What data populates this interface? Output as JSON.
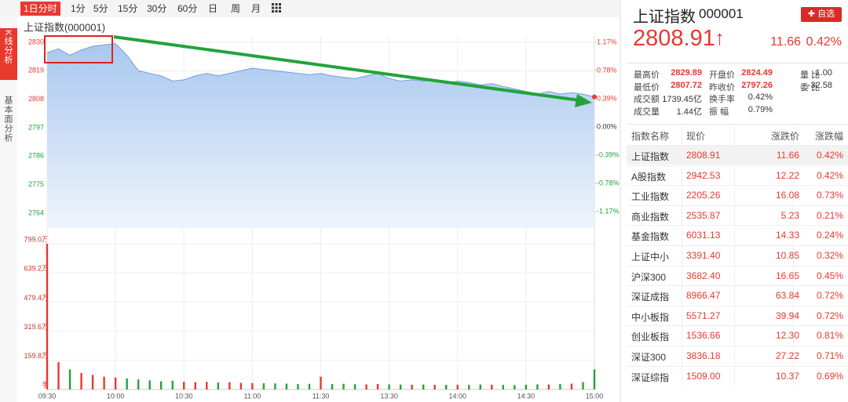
{
  "tabs": [
    "1日分时",
    "1分",
    "5分",
    "15分",
    "30分",
    "60分",
    "日",
    "周",
    "月"
  ],
  "side_tabs": [
    "K线分析",
    "基本面分析"
  ],
  "chart_data": {
    "type": "line",
    "title": "上证指数(000001)",
    "x": [
      "09:30",
      "09:35",
      "09:40",
      "09:45",
      "09:50",
      "09:55",
      "10:00",
      "10:05",
      "10:10",
      "10:15",
      "10:20",
      "10:25",
      "10:30",
      "10:35",
      "10:40",
      "10:45",
      "10:50",
      "10:55",
      "11:00",
      "11:05",
      "11:10",
      "11:15",
      "11:20",
      "11:25",
      "11:30",
      "13:05",
      "13:10",
      "13:15",
      "13:20",
      "13:25",
      "13:30",
      "13:35",
      "13:40",
      "13:45",
      "13:50",
      "13:55",
      "14:00",
      "14:05",
      "14:10",
      "14:15",
      "14:20",
      "14:25",
      "14:30",
      "14:35",
      "14:40",
      "14:45",
      "14:50",
      "14:55",
      "15:00"
    ],
    "xticks": [
      "09:30",
      "10:00",
      "10:30",
      "11:00",
      "11:30",
      "13:30",
      "14:00",
      "14:30",
      "15:00"
    ],
    "price": {
      "color": "#6f9fdc",
      "values": [
        2826,
        2827.5,
        2825,
        2827,
        2828.5,
        2829,
        2829.5,
        2825,
        2819,
        2818,
        2817,
        2815,
        2815.5,
        2817,
        2818,
        2817,
        2818,
        2819,
        2820,
        2819.5,
        2819,
        2818.5,
        2818,
        2817.5,
        2818,
        2817,
        2816.5,
        2816,
        2817,
        2818,
        2816,
        2815,
        2815.5,
        2815,
        2815.5,
        2814,
        2815,
        2814.5,
        2813.5,
        2814,
        2813,
        2812,
        2811,
        2810,
        2811,
        2810,
        2810.5,
        2810,
        2808.91
      ]
    },
    "ylim": [
      2764,
      2830
    ],
    "yticks": [
      2830,
      2819,
      2808,
      2797,
      2786,
      2775,
      2764
    ],
    "pct_ticks": [
      {
        "value": 1.17,
        "label": "1.17%"
      },
      {
        "value": 0.78,
        "label": "0.78%"
      },
      {
        "value": 0.39,
        "label": "0.39%"
      },
      {
        "value": 0,
        "label": "0.00%"
      },
      {
        "value": -0.39,
        "label": "-0.39%"
      },
      {
        "value": -0.78,
        "label": "-0.78%"
      },
      {
        "value": -1.17,
        "label": "-1.17%"
      }
    ],
    "prev_close": 2797.26,
    "volume": {
      "values": [
        799,
        150,
        110,
        90,
        80,
        70,
        65,
        60,
        55,
        50,
        45,
        48,
        42,
        40,
        42,
        38,
        40,
        36,
        35,
        34,
        33,
        32,
        30,
        31,
        70,
        30,
        31,
        29,
        28,
        30,
        28,
        27,
        26,
        27,
        26,
        25,
        26,
        25,
        27,
        26,
        25,
        24,
        26,
        28,
        27,
        30,
        32,
        40,
        110
      ]
    },
    "vlim": [
      0,
      799
    ],
    "vticks": [
      {
        "value": 799.0,
        "label": "799.0万"
      },
      {
        "value": 639.2,
        "label": "639.2万"
      },
      {
        "value": 479.4,
        "label": "479.4万"
      },
      {
        "value": 319.6,
        "label": "319.6万"
      },
      {
        "value": 159.8,
        "label": "159.8万"
      },
      {
        "value": 0,
        "label": "手"
      }
    ],
    "up_color": "#e8392f",
    "down_color": "#22a33a",
    "grid": true
  },
  "quote": {
    "name": "上证指数",
    "code": "000001",
    "button": "自选",
    "price": "2808.91",
    "arrow": "↑",
    "change": "11.66",
    "pct": "0.42%",
    "stats": [
      [
        {
          "label": "最高价",
          "value": "2829.89"
        },
        {
          "label": "开盘价",
          "value": "2824.49"
        },
        {
          "label": "量 比",
          "value": "1.00"
        }
      ],
      [
        {
          "label": "最低价",
          "value": "2807.72"
        },
        {
          "label": "昨收价",
          "value": "2797.26"
        },
        {
          "label": "委 比",
          "value": "-32.58"
        }
      ],
      [
        {
          "label": "成交额",
          "value": "1739.45亿"
        },
        {
          "label": "换手率",
          "value": "0.42%"
        }
      ],
      [
        {
          "label": "成交量",
          "value": "1.44亿"
        },
        {
          "label": "振 幅",
          "value": "0.79%"
        }
      ]
    ]
  },
  "table": {
    "header": [
      "指数名称",
      "现价",
      "涨跌价",
      "涨跌幅"
    ],
    "rows": [
      [
        "上证指数",
        "2808.91",
        "11.66",
        "0.42%"
      ],
      [
        "A股指数",
        "2942.53",
        "12.22",
        "0.42%"
      ],
      [
        "工业指数",
        "2205.26",
        "16.08",
        "0.73%"
      ],
      [
        "商业指数",
        "2535.87",
        "5.23",
        "0.21%"
      ],
      [
        "基金指数",
        "6031.13",
        "14.33",
        "0.24%"
      ],
      [
        "上证中小",
        "3391.40",
        "10.85",
        "0.32%"
      ],
      [
        "沪深300",
        "3682.40",
        "16.65",
        "0.45%"
      ],
      [
        "深证成指",
        "8966.47",
        "63.84",
        "0.72%"
      ],
      [
        "中小板指",
        "5571.27",
        "39.94",
        "0.72%"
      ],
      [
        "创业板指",
        "1536.66",
        "12.30",
        "0.81%"
      ],
      [
        "深证300",
        "3836.18",
        "27.22",
        "0.71%"
      ],
      [
        "深证综指",
        "1509.00",
        "10.37",
        "0.69%"
      ]
    ]
  }
}
